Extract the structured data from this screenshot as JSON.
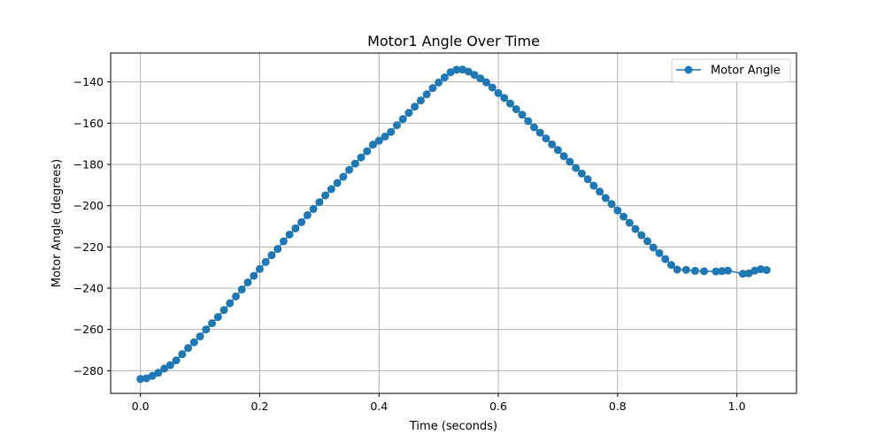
{
  "chart_data": {
    "type": "line",
    "title": "Motor1 Angle Over Time",
    "xlabel": "Time (seconds)",
    "ylabel": "Motor Angle (degrees)",
    "xlim": [
      -0.05,
      1.1
    ],
    "ylim": [
      -291,
      -126
    ],
    "xticks": [
      0.0,
      0.2,
      0.4,
      0.6,
      0.8,
      1.0
    ],
    "xtick_labels": [
      "0.0",
      "0.2",
      "0.4",
      "0.6",
      "0.8",
      "1.0"
    ],
    "yticks": [
      -280,
      -260,
      -240,
      -220,
      -200,
      -180,
      -160,
      -140
    ],
    "ytick_labels": [
      "−280",
      "−260",
      "−240",
      "−220",
      "−200",
      "−180",
      "−160",
      "−140"
    ],
    "grid": true,
    "legend_position": "top-right",
    "colors": {
      "series": "#1f77b4",
      "grid": "#b0b0b0"
    },
    "series": [
      {
        "name": "Motor Angle",
        "marker": "circle",
        "x": [
          0.0,
          0.01,
          0.02,
          0.03,
          0.04,
          0.05,
          0.06,
          0.07,
          0.08,
          0.09,
          0.1,
          0.11,
          0.12,
          0.13,
          0.14,
          0.15,
          0.16,
          0.17,
          0.18,
          0.19,
          0.2,
          0.21,
          0.22,
          0.23,
          0.24,
          0.25,
          0.26,
          0.27,
          0.28,
          0.29,
          0.3,
          0.31,
          0.32,
          0.33,
          0.34,
          0.35,
          0.36,
          0.37,
          0.38,
          0.39,
          0.4,
          0.41,
          0.42,
          0.43,
          0.44,
          0.45,
          0.46,
          0.47,
          0.48,
          0.49,
          0.5,
          0.51,
          0.52,
          0.53,
          0.54,
          0.55,
          0.56,
          0.57,
          0.58,
          0.59,
          0.6,
          0.61,
          0.62,
          0.63,
          0.64,
          0.65,
          0.66,
          0.67,
          0.68,
          0.69,
          0.7,
          0.71,
          0.72,
          0.73,
          0.74,
          0.75,
          0.76,
          0.77,
          0.78,
          0.79,
          0.8,
          0.81,
          0.82,
          0.83,
          0.84,
          0.85,
          0.86,
          0.87,
          0.88,
          0.89,
          0.9,
          0.915,
          0.93,
          0.945,
          0.965,
          0.975,
          0.985,
          1.01,
          1.02,
          1.03,
          1.04,
          1.05
        ],
        "y": [
          -284,
          -283.7,
          -282.5,
          -281,
          -279,
          -277.3,
          -275,
          -272,
          -269,
          -266.2,
          -263.4,
          -260,
          -257,
          -254,
          -250.6,
          -247.3,
          -244,
          -240.6,
          -237.2,
          -234,
          -230.7,
          -227.3,
          -224,
          -221,
          -217.3,
          -214,
          -211,
          -208,
          -204.6,
          -201.6,
          -198.3,
          -195,
          -192,
          -189,
          -186,
          -182.6,
          -179.6,
          -176.6,
          -173.6,
          -170.4,
          -168.5,
          -166.5,
          -164.3,
          -161,
          -158,
          -155,
          -152,
          -149,
          -146,
          -143,
          -140.3,
          -137.8,
          -135.3,
          -134.1,
          -134,
          -135,
          -136.6,
          -138.3,
          -140.2,
          -142.7,
          -145.4,
          -147.8,
          -150.5,
          -153.2,
          -155.9,
          -159,
          -162,
          -164.6,
          -167.4,
          -170.3,
          -173,
          -176,
          -178.7,
          -181.7,
          -184.4,
          -187.2,
          -190.3,
          -193.2,
          -196.3,
          -199.2,
          -202.3,
          -205.3,
          -208.3,
          -211.3,
          -214.3,
          -217.2,
          -220.3,
          -223,
          -225.9,
          -228.7,
          -231,
          -231.1,
          -231.6,
          -231.8,
          -231.9,
          -231.7,
          -231.5,
          -233,
          -232.8,
          -231.5,
          -230.8,
          -231.2
        ]
      }
    ]
  }
}
